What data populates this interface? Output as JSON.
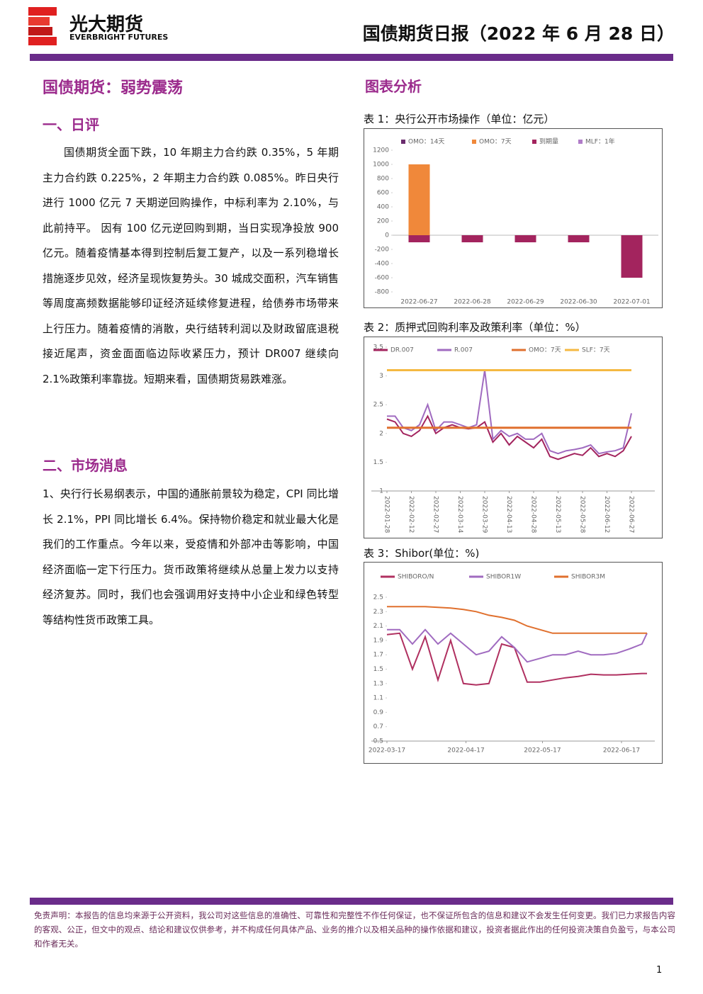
{
  "header": {
    "brand": "光大期货",
    "brand_en": "EVERBRIGHT FUTURES",
    "report_title": "国债期货日报（2022 年 6 月 28 日）"
  },
  "main_title": "国债期货：弱势震荡",
  "section1": {
    "heading": "一、日评",
    "text": "国债期货全面下跌，10 年期主力合约跌 0.35%，5 年期主力合约跌 0.225%，2 年期主力合约跌 0.085%。昨日央行进行 1000 亿元 7 天期逆回购操作，中标利率为 2.10%，与此前持平。 因有 100 亿元逆回购到期，当日实现净投放 900 亿元。随着疫情基本得到控制后复工复产，以及一系列稳增长措施逐步见效，经济呈现恢复势头。30 城成交面积，汽车销售等周度高频数据能够印证经济延续修复进程，给债券市场带来上行压力。随着疫情的消散，央行结转利润以及财政留底退税接近尾声，资金面面临边际收紧压力，预计 DR007 继续向 2.1%政策利率靠拢。短期来看，国债期货易跌难涨。"
  },
  "section2": {
    "heading": "二、市场消息",
    "text": "1、央行行长易纲表示，中国的通胀前景较为稳定，CPI 同比增长 2.1%，PPI 同比增长 6.4%。保持物价稳定和就业最大化是我们的工作重点。今年以来，受疫情和外部冲击等影响，中国经济面临一定下行压力。货币政策将继续从总量上发力以支持经济复苏。同时，我们也会强调用好支持中小企业和绿色转型等结构性货币政策工具。"
  },
  "charts_heading": "图表分析",
  "chart_data": [
    {
      "type": "bar",
      "title": "表 1：央行公开市场操作（单位：亿元）",
      "categories": [
        "2022-06-27",
        "2022-06-28",
        "2022-06-29",
        "2022-06-30",
        "2022-07-01"
      ],
      "series": [
        {
          "name": "OMO：14天",
          "color": "#6b2c6e",
          "values": [
            null,
            null,
            null,
            null,
            null
          ]
        },
        {
          "name": "OMO：7天",
          "color": "#f0883a",
          "values": [
            1000,
            null,
            null,
            null,
            null
          ]
        },
        {
          "name": "到期量",
          "color": "#a3245e",
          "values": [
            -100,
            -100,
            -100,
            -100,
            -600
          ]
        },
        {
          "name": "MLF：1年",
          "color": "#b07cc8",
          "values": [
            null,
            null,
            null,
            null,
            null
          ]
        }
      ],
      "ylim": [
        -800,
        1200
      ],
      "yticks": [
        -800,
        -600,
        -400,
        -200,
        0,
        200,
        400,
        600,
        800,
        1000,
        1200
      ],
      "grid": false
    },
    {
      "type": "line",
      "title": "表 2：质押式回购利率及政策利率（单位：%）",
      "x": [
        "2022-01-28",
        "2022-02-02",
        "2022-02-07",
        "2022-02-12",
        "2022-02-17",
        "2022-02-22",
        "2022-02-27",
        "2022-03-04",
        "2022-03-09",
        "2022-03-14",
        "2022-03-19",
        "2022-03-24",
        "2022-03-29",
        "2022-04-03",
        "2022-04-08",
        "2022-04-13",
        "2022-04-18",
        "2022-04-23",
        "2022-04-28",
        "2022-05-03",
        "2022-05-08",
        "2022-05-13",
        "2022-05-18",
        "2022-05-23",
        "2022-05-28",
        "2022-06-02",
        "2022-06-07",
        "2022-06-12",
        "2022-06-17",
        "2022-06-22",
        "2022-06-27"
      ],
      "series": [
        {
          "name": "DR.007",
          "color": "#a3245e",
          "values": [
            2.25,
            2.2,
            2.0,
            1.95,
            2.05,
            2.3,
            2.0,
            2.1,
            2.15,
            2.1,
            2.08,
            2.1,
            2.2,
            1.85,
            2.0,
            1.8,
            1.95,
            1.85,
            1.75,
            1.9,
            1.6,
            1.55,
            1.6,
            1.65,
            1.62,
            1.75,
            1.6,
            1.65,
            1.6,
            1.7,
            1.95
          ]
        },
        {
          "name": "R.007",
          "color": "#a06bc0",
          "values": [
            2.3,
            2.3,
            2.1,
            2.05,
            2.15,
            2.5,
            2.05,
            2.2,
            2.2,
            2.15,
            2.1,
            2.15,
            3.1,
            1.9,
            2.05,
            1.95,
            2.0,
            1.9,
            1.9,
            2.0,
            1.7,
            1.65,
            1.7,
            1.72,
            1.75,
            1.8,
            1.65,
            1.68,
            1.7,
            1.75,
            2.35
          ]
        },
        {
          "name": "OMO：7天",
          "color": "#e0702e",
          "values": [
            2.1,
            2.1,
            2.1,
            2.1,
            2.1,
            2.1,
            2.1,
            2.1,
            2.1,
            2.1,
            2.1,
            2.1,
            2.1,
            2.1,
            2.1,
            2.1,
            2.1,
            2.1,
            2.1,
            2.1,
            2.1,
            2.1,
            2.1,
            2.1,
            2.1,
            2.1,
            2.1,
            2.1,
            2.1,
            2.1,
            2.1
          ]
        },
        {
          "name": "SLF：7天",
          "color": "#f5b942",
          "values": [
            3.1,
            3.1,
            3.1,
            3.1,
            3.1,
            3.1,
            3.1,
            3.1,
            3.1,
            3.1,
            3.1,
            3.1,
            3.1,
            3.1,
            3.1,
            3.1,
            3.1,
            3.1,
            3.1,
            3.1,
            3.1,
            3.1,
            3.1,
            3.1,
            3.1,
            3.1,
            3.1,
            3.1,
            3.1,
            3.1,
            3.1
          ]
        }
      ],
      "xticks": [
        "2022-01-28",
        "2022-02-12",
        "2022-02-27",
        "2022-03-14",
        "2022-03-29",
        "2022-04-13",
        "2022-04-28",
        "2022-05-13",
        "2022-05-28",
        "2022-06-12",
        "2022-06-27"
      ],
      "ylim": [
        1,
        3.5
      ],
      "yticks": [
        1,
        1.5,
        2,
        2.5,
        3,
        3.5
      ],
      "grid": false
    },
    {
      "type": "line",
      "title": "表 3：Shibor(单位：%)",
      "x": [
        "2022-03-17",
        "2022-03-22",
        "2022-03-27",
        "2022-04-01",
        "2022-04-06",
        "2022-04-11",
        "2022-04-16",
        "2022-04-21",
        "2022-04-26",
        "2022-05-01",
        "2022-05-06",
        "2022-05-11",
        "2022-05-16",
        "2022-05-21",
        "2022-05-26",
        "2022-05-31",
        "2022-06-05",
        "2022-06-10",
        "2022-06-15",
        "2022-06-20",
        "2022-06-25",
        "2022-06-27"
      ],
      "series": [
        {
          "name": "SHIBORO/N",
          "color": "#b03060",
          "values": [
            1.98,
            2.0,
            1.5,
            1.95,
            1.35,
            1.9,
            1.3,
            1.28,
            1.3,
            1.85,
            1.8,
            1.32,
            1.32,
            1.35,
            1.38,
            1.4,
            1.43,
            1.42,
            1.42,
            1.43,
            1.44,
            1.44
          ]
        },
        {
          "name": "SHIBOR1W",
          "color": "#a06bc0",
          "values": [
            2.05,
            2.05,
            1.85,
            2.05,
            1.85,
            2.0,
            1.85,
            1.7,
            1.75,
            1.95,
            1.8,
            1.6,
            1.65,
            1.7,
            1.7,
            1.75,
            1.7,
            1.7,
            1.72,
            1.78,
            1.85,
            2.0
          ]
        },
        {
          "name": "SHIBOR3M",
          "color": "#e0702e",
          "values": [
            2.37,
            2.37,
            2.37,
            2.37,
            2.36,
            2.35,
            2.33,
            2.3,
            2.25,
            2.22,
            2.18,
            2.1,
            2.05,
            2.0,
            2.0,
            2.0,
            2.0,
            2.0,
            2.0,
            2.0,
            2.0,
            2.0
          ]
        }
      ],
      "xticks": [
        "2022-03-17",
        "2022-04-17",
        "2022-05-17",
        "2022-06-17"
      ],
      "ylim": [
        0.5,
        2.5
      ],
      "yticks": [
        0.5,
        0.7,
        0.9,
        1.1,
        1.3,
        1.5,
        1.7,
        1.9,
        2.1,
        2.3,
        2.5
      ],
      "grid": false
    }
  ],
  "disclaimer": "免责声明：本报告的信息均来源于公开资料，我公司对这些信息的准确性、可靠性和完整性不作任何保证，也不保证所包含的信息和建议不会发生任何变更。我们已力求报告内容的客观、公正，但文中的观点、结论和建议仅供参考，并不构成任何具体产品、业务的推介以及相关品种的操作依据和建议，投资者据此作出的任何投资决策自负盈亏，与本公司和作者无关。",
  "page_number": "1"
}
